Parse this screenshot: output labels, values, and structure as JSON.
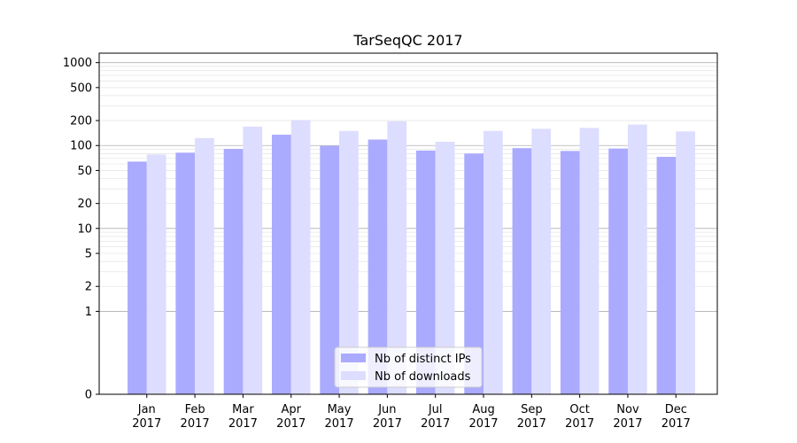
{
  "chart_data": {
    "type": "bar",
    "title": "TarSeqQC 2017",
    "xlabel": "",
    "ylabel": "",
    "yscale": "symlog",
    "ylim": [
      0,
      1300
    ],
    "yticks": [
      0,
      1,
      2,
      5,
      10,
      20,
      50,
      100,
      200,
      500,
      1000
    ],
    "ytick_labels": [
      "0",
      "1",
      "2",
      "5",
      "10",
      "20",
      "50",
      "100",
      "200",
      "500",
      "1000"
    ],
    "categories": [
      "Jan\n2017",
      "Feb\n2017",
      "Mar\n2017",
      "Apr\n2017",
      "May\n2017",
      "Jun\n2017",
      "Jul\n2017",
      "Aug\n2017",
      "Sep\n2017",
      "Oct\n2017",
      "Nov\n2017",
      "Dec\n2017"
    ],
    "series": [
      {
        "name": "Nb of distinct IPs",
        "color": "#aaaaff",
        "values": [
          64,
          82,
          91,
          135,
          99,
          118,
          87,
          80,
          93,
          86,
          92,
          73
        ]
      },
      {
        "name": "Nb of downloads",
        "color": "#ddddff",
        "values": [
          78,
          123,
          169,
          203,
          150,
          196,
          111,
          150,
          159,
          163,
          179,
          148
        ]
      }
    ],
    "grid": true,
    "legend_position": "bottom-center"
  }
}
